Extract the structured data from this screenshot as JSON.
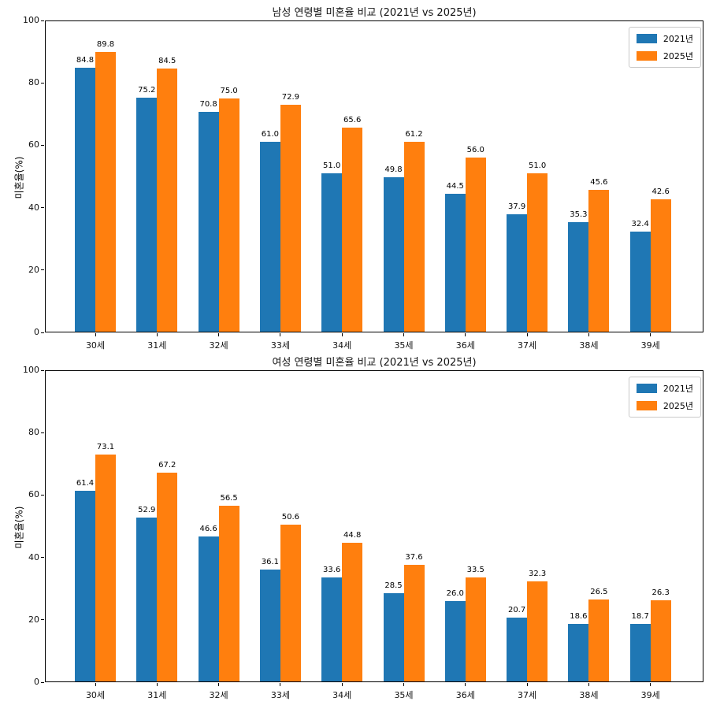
{
  "figure": {
    "background": "#ffffff"
  },
  "colors": {
    "series_2021": "#1f77b4",
    "series_2025": "#ff7f0e",
    "axis": "#000000",
    "legend_border": "#c9c9c9"
  },
  "chart_data": [
    {
      "type": "bar",
      "title": "남성 연령별 미혼율 비교 (2021년 vs 2025년)",
      "xlabel": "",
      "ylabel": "미혼율(%)",
      "ylim": [
        0,
        100
      ],
      "yticks": [
        0,
        20,
        40,
        60,
        80,
        100
      ],
      "grid": false,
      "legend_position": "upper right",
      "bar_value_labels": true,
      "categories": [
        "30세",
        "31세",
        "32세",
        "33세",
        "34세",
        "35세",
        "36세",
        "37세",
        "38세",
        "39세"
      ],
      "series": [
        {
          "name": "2021년",
          "color": "#1f77b4",
          "values": [
            84.8,
            75.2,
            70.8,
            61.0,
            51.0,
            49.8,
            44.5,
            37.9,
            35.3,
            32.4
          ]
        },
        {
          "name": "2025년",
          "color": "#ff7f0e",
          "values": [
            89.8,
            84.5,
            75.0,
            72.9,
            65.6,
            61.2,
            56.0,
            51.0,
            45.6,
            42.6
          ]
        }
      ]
    },
    {
      "type": "bar",
      "title": "여성 연령별 미혼율 비교 (2021년 vs 2025년)",
      "xlabel": "",
      "ylabel": "미혼율(%)",
      "ylim": [
        0,
        100
      ],
      "yticks": [
        0,
        20,
        40,
        60,
        80,
        100
      ],
      "grid": false,
      "legend_position": "upper right",
      "bar_value_labels": true,
      "categories": [
        "30세",
        "31세",
        "32세",
        "33세",
        "34세",
        "35세",
        "36세",
        "37세",
        "38세",
        "39세"
      ],
      "series": [
        {
          "name": "2021년",
          "color": "#1f77b4",
          "values": [
            61.4,
            52.9,
            46.6,
            36.1,
            33.6,
            28.5,
            26.0,
            20.7,
            18.6,
            18.7
          ]
        },
        {
          "name": "2025년",
          "color": "#ff7f0e",
          "values": [
            73.1,
            67.2,
            56.5,
            50.6,
            44.8,
            37.6,
            33.5,
            32.3,
            26.5,
            26.3
          ]
        }
      ]
    }
  ]
}
